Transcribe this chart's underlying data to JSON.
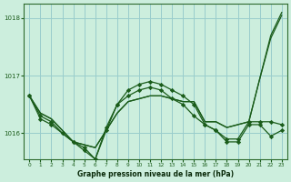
{
  "bg_color": "#cceedd",
  "grid_color": "#99cccc",
  "line_color": "#1a5c1a",
  "xlabel": "Graphe pression niveau de la mer (hPa)",
  "ylim": [
    1015.55,
    1018.25
  ],
  "xlim": [
    -0.5,
    23.5
  ],
  "yticks": [
    1016,
    1017,
    1018
  ],
  "xticks": [
    0,
    1,
    2,
    3,
    4,
    5,
    6,
    7,
    8,
    9,
    10,
    11,
    12,
    13,
    14,
    15,
    16,
    17,
    18,
    19,
    20,
    21,
    22,
    23
  ],
  "series": [
    {
      "y": [
        1016.65,
        1016.35,
        1016.25,
        1016.05,
        1015.85,
        1015.8,
        1015.75,
        1016.05,
        1016.35,
        1016.55,
        1016.6,
        1016.65,
        1016.65,
        1016.6,
        1016.55,
        1016.55,
        1016.2,
        1016.2,
        1016.1,
        1016.15,
        1016.2,
        1016.95,
        1017.65,
        1018.05
      ],
      "marker": null,
      "lw": 0.9
    },
    {
      "y": [
        1016.65,
        1016.35,
        1016.25,
        1016.05,
        1015.85,
        1015.8,
        1015.75,
        1016.05,
        1016.35,
        1016.55,
        1016.6,
        1016.65,
        1016.65,
        1016.6,
        1016.55,
        1016.55,
        1016.2,
        1016.2,
        1016.1,
        1016.15,
        1016.2,
        1016.95,
        1017.7,
        1018.1
      ],
      "marker": null,
      "lw": 0.9
    },
    {
      "y": [
        1016.65,
        1016.3,
        1016.2,
        1016.0,
        1015.85,
        1015.75,
        1015.55,
        1016.05,
        1016.5,
        1016.65,
        1016.75,
        1016.8,
        1016.75,
        1016.6,
        1016.5,
        1016.3,
        1016.15,
        1016.05,
        1015.9,
        1015.9,
        1016.2,
        1016.2,
        1016.2,
        1016.15
      ],
      "marker": "D",
      "lw": 0.9
    },
    {
      "y": [
        1016.65,
        1016.25,
        1016.15,
        1016.0,
        1015.85,
        1015.7,
        1015.55,
        1016.1,
        1016.5,
        1016.75,
        1016.85,
        1016.9,
        1016.85,
        1016.75,
        1016.65,
        1016.5,
        1016.15,
        1016.05,
        1015.85,
        1015.85,
        1016.15,
        1016.15,
        1015.95,
        1016.05
      ],
      "marker": "D",
      "lw": 0.9
    }
  ]
}
